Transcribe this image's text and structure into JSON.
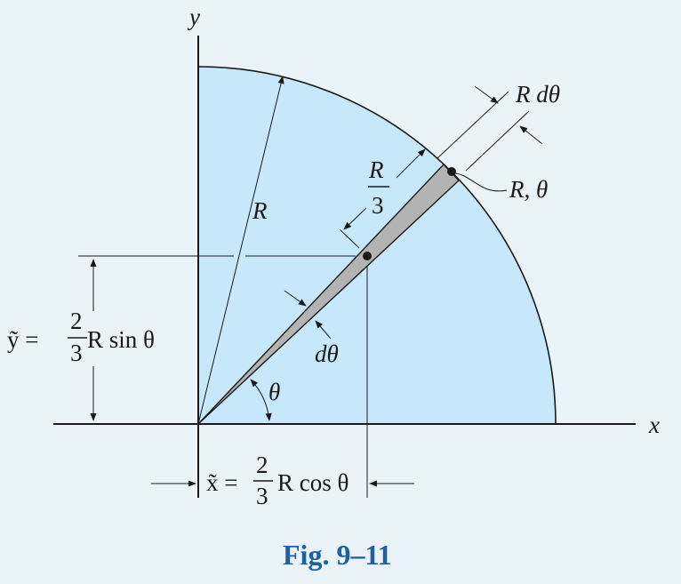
{
  "colors": {
    "background": "#e9f3f8",
    "sector_fill": "#c7e8fa",
    "element_fill": "#b3b3b3",
    "line": "#1a1a1a",
    "caption": "#1f5fa6"
  },
  "axes": {
    "x_label": "x",
    "y_label": "y"
  },
  "labels": {
    "radius": "R",
    "radius_theta_point": "R, θ",
    "arc_width": "R dθ",
    "element_angle": "dθ",
    "angle": "θ",
    "two_thirds": {
      "num": "2",
      "den": "3"
    },
    "r_over_3": {
      "num": "R",
      "den": "3"
    },
    "y_bar": {
      "lhs": "ỹ =",
      "rhs": "R sin θ"
    },
    "x_bar": {
      "lhs": "x̃ =",
      "rhs": "R cos θ"
    }
  },
  "caption": "Fig. 9–11"
}
